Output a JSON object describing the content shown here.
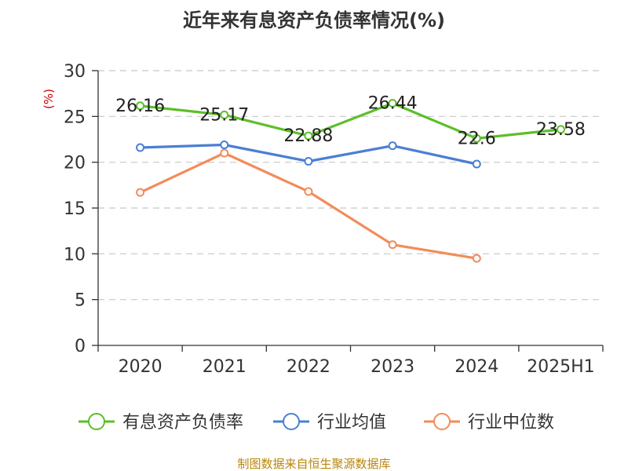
{
  "chart_data": {
    "type": "line",
    "title": "近年来有息资产负债率情况(%)",
    "ylabel": "(%)",
    "ylim": [
      0,
      30
    ],
    "yticks": [
      0,
      5,
      10,
      15,
      20,
      25,
      30
    ],
    "categories": [
      "2020",
      "2021",
      "2022",
      "2023",
      "2024",
      "2025H1"
    ],
    "grid": true,
    "legend_position": "bottom",
    "series": [
      {
        "name": "有息资产负债率",
        "color": "#5cbf2a",
        "values": [
          26.16,
          25.17,
          22.88,
          26.44,
          22.6,
          23.58
        ],
        "labels": [
          "26.16",
          "25.17",
          "22.88",
          "26.44",
          "22.6",
          "23.58"
        ]
      },
      {
        "name": "行业均值",
        "color": "#4a7fd4",
        "values": [
          21.6,
          21.9,
          20.1,
          21.8,
          19.8,
          null
        ]
      },
      {
        "name": "行业中位数",
        "color": "#f28c5a",
        "values": [
          16.7,
          21.0,
          16.8,
          11.0,
          9.5,
          null
        ]
      }
    ]
  },
  "source": "制图数据来自恒生聚源数据库"
}
